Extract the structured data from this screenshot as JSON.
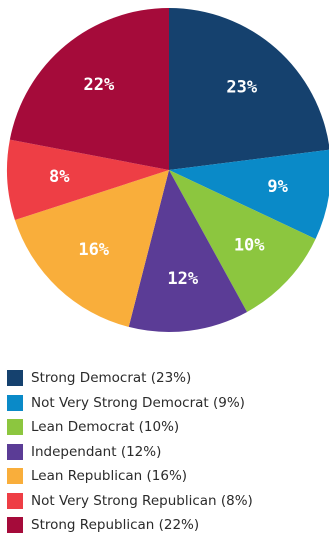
{
  "chart_data": {
    "type": "pie",
    "categories": [
      "Strong Democrat",
      "Not Very Strong Democrat",
      "Lean Democrat",
      "Independant",
      "Lean Republican",
      "Not Very Strong Republican",
      "Strong Republican"
    ],
    "values": [
      23,
      9,
      10,
      12,
      16,
      8,
      22
    ],
    "data_labels": [
      "23%",
      "9%",
      "10%",
      "12%",
      "16%",
      "8%",
      "22%"
    ],
    "legend_labels": [
      "Strong Democrat (23%)",
      "Not Very Strong Democrat (9%)",
      "Lean Democrat (10%)",
      "Independant (12%)",
      "Lean Republican (16%)",
      "Not Very Strong Republican (8%)",
      "Strong Republican (22%)"
    ],
    "colors": [
      "#15416e",
      "#0a8ac8",
      "#8cc63f",
      "#5b3c96",
      "#f9ae3b",
      "#ee3e45",
      "#a50b3a"
    ],
    "start_angle_deg": 0,
    "direction": "clockwise",
    "legend_position": "bottom",
    "title": ""
  }
}
